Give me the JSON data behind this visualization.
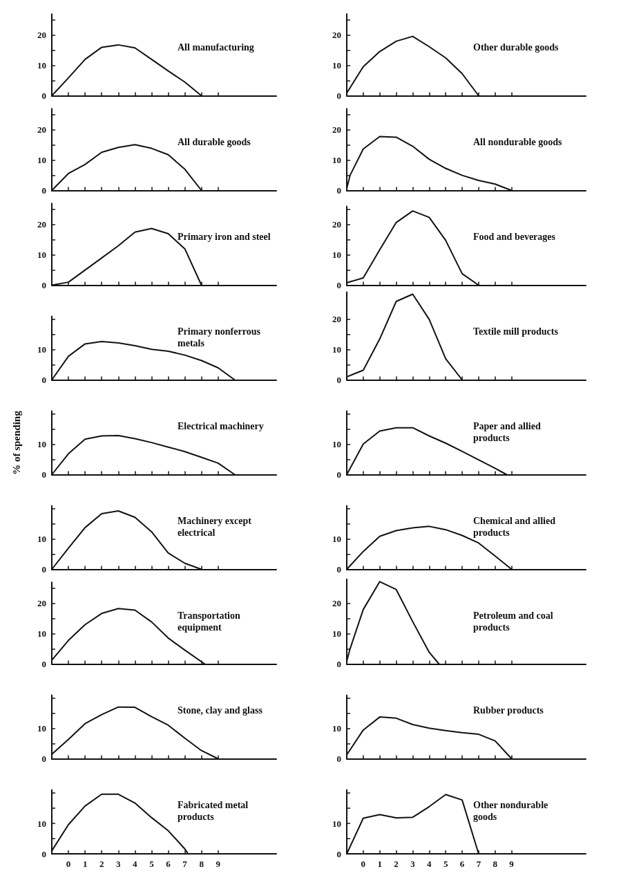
{
  "chart_data": [
    {
      "type": "line",
      "title": "All manufacturing",
      "x": [
        -1,
        0,
        1,
        2,
        3,
        4,
        5,
        6,
        7,
        8
      ],
      "values": [
        0,
        5.9,
        12,
        16,
        16.8,
        15.8,
        12,
        8.2,
        4.5,
        0
      ],
      "color": "#111111",
      "xlim": [
        -1,
        12.5
      ],
      "xticks": [
        0,
        1,
        2,
        3,
        4,
        5,
        6,
        7,
        8,
        9
      ],
      "ylim": [
        0,
        27
      ],
      "yticks": [
        0,
        {
          "value": 5,
          "label": null
        },
        10,
        {
          "value": 15,
          "label": null
        },
        20,
        {
          "value": 25,
          "label": null
        }
      ],
      "tick_labels": "y"
    },
    {
      "type": "line",
      "title": "Other durable goods",
      "x": [
        -1,
        0,
        1,
        2,
        3,
        4,
        5,
        6,
        7
      ],
      "values": [
        0.9,
        9.6,
        14.6,
        18,
        19.6,
        16.2,
        12.5,
        7.3,
        0
      ],
      "color": "#111111",
      "xlim": [
        -1,
        13.5
      ],
      "xticks": [
        0,
        1,
        2,
        3,
        4,
        5,
        6,
        7,
        8,
        9
      ],
      "ylim": [
        0,
        27
      ],
      "yticks": [
        0,
        {
          "value": 5,
          "label": null
        },
        10,
        {
          "value": 15,
          "label": null
        },
        20,
        {
          "value": 25,
          "label": null
        }
      ],
      "tick_labels": "y"
    },
    {
      "type": "line",
      "title": "All durable goods",
      "x": [
        -1,
        0,
        1,
        2,
        3,
        4,
        5,
        6,
        7,
        8
      ],
      "values": [
        0,
        5.6,
        8.6,
        12.6,
        14.2,
        15.1,
        13.9,
        11.8,
        7,
        0
      ],
      "color": "#111111",
      "xlim": [
        -1,
        12.5
      ],
      "xticks": [
        0,
        1,
        2,
        3,
        4,
        5,
        6,
        7,
        8,
        9
      ],
      "ylim": [
        0,
        27
      ],
      "yticks": [
        0,
        {
          "value": 5,
          "label": null
        },
        10,
        {
          "value": 15,
          "label": null
        },
        20,
        {
          "value": 25,
          "label": null
        }
      ],
      "tick_labels": "y"
    },
    {
      "type": "line",
      "title": "All nondurable goods",
      "x": [
        -1,
        -0.8,
        0,
        1,
        2,
        3,
        4,
        5,
        6,
        7,
        8,
        9
      ],
      "values": [
        0.7,
        5,
        13.7,
        17.8,
        17.6,
        14.6,
        10.3,
        7.3,
        5,
        3.3,
        2.1,
        0
      ],
      "color": "#111111",
      "xlim": [
        -1,
        13.5
      ],
      "xticks": [
        0,
        1,
        2,
        3,
        4,
        5,
        6,
        7,
        8,
        9
      ],
      "ylim": [
        0,
        27
      ],
      "yticks": [
        0,
        {
          "value": 5,
          "label": null
        },
        10,
        {
          "value": 15,
          "label": null
        },
        20,
        {
          "value": 25,
          "label": null
        }
      ],
      "tick_labels": "y"
    },
    {
      "type": "line",
      "title": "Primary iron and steel",
      "x": [
        -1,
        0,
        1,
        2,
        3,
        4,
        5,
        6,
        7,
        8
      ],
      "values": [
        0,
        1,
        5,
        9,
        13,
        17.5,
        18.7,
        17,
        12,
        0
      ],
      "color": "#111111",
      "xlim": [
        -1,
        12.5
      ],
      "xticks": [
        0,
        1,
        2,
        3,
        4,
        5,
        6,
        7,
        8,
        9
      ],
      "ylim": [
        0,
        27
      ],
      "yticks": [
        0,
        {
          "value": 5,
          "label": null
        },
        10,
        {
          "value": 15,
          "label": null
        },
        20,
        {
          "value": 25,
          "label": null
        }
      ],
      "tick_labels": "y"
    },
    {
      "type": "line",
      "title": "Food and beverages",
      "x": [
        -1,
        0,
        1,
        2,
        3,
        4,
        5,
        6,
        7
      ],
      "values": [
        0.8,
        2.4,
        11.7,
        20.7,
        24.5,
        22.4,
        14.8,
        3.8,
        0
      ],
      "color": "#111111",
      "xlim": [
        -1,
        13.5
      ],
      "xticks": [
        0,
        1,
        2,
        3,
        4,
        5,
        6,
        7,
        8,
        9
      ],
      "ylim": [
        0,
        26
      ],
      "yticks": [
        0,
        {
          "value": 5,
          "label": null
        },
        10,
        {
          "value": 15,
          "label": null
        },
        20,
        {
          "value": 25,
          "label": null
        }
      ],
      "tick_labels": "y"
    },
    {
      "type": "line",
      "title": "Primary nonferrous metals",
      "x": [
        -1,
        0,
        1,
        2,
        3,
        4,
        5,
        6,
        7,
        8,
        9,
        10
      ],
      "values": [
        0,
        7.8,
        11.9,
        12.7,
        12.2,
        11.3,
        10.1,
        9.5,
        8.2,
        6.4,
        4,
        0
      ],
      "color": "#111111",
      "xlim": [
        -1,
        12.5
      ],
      "xticks": [
        0,
        1,
        2,
        3,
        4,
        5,
        6,
        7,
        8,
        9
      ],
      "ylim": [
        0,
        21
      ],
      "yticks": [
        0,
        {
          "value": 5,
          "label": null
        },
        10,
        {
          "value": 15,
          "label": null
        },
        {
          "value": 20,
          "label": null
        }
      ],
      "tick_labels": "y"
    },
    {
      "type": "line",
      "title": "Textile mill products",
      "x": [
        -1,
        0,
        1,
        2,
        3,
        4,
        5,
        6
      ],
      "values": [
        1,
        3.2,
        13.5,
        25.9,
        28.3,
        20,
        7,
        0
      ],
      "color": "#111111",
      "xlim": [
        -1,
        13.5
      ],
      "xticks": [
        0,
        1,
        2,
        3,
        4,
        5,
        6,
        7,
        8,
        9
      ],
      "ylim": [
        0,
        29
      ],
      "yticks": [
        0,
        {
          "value": 5,
          "label": null
        },
        10,
        {
          "value": 15,
          "label": null
        },
        20
      ],
      "tick_labels": "y"
    },
    {
      "type": "line",
      "title": "Electrical machinery",
      "ylabel": "% of spending",
      "x": [
        -1,
        0,
        1,
        2,
        3,
        4,
        5,
        6,
        7,
        8,
        9,
        10
      ],
      "values": [
        0,
        6.9,
        11.7,
        12.8,
        12.9,
        11.9,
        10.6,
        9.1,
        7.6,
        5.7,
        3.8,
        0
      ],
      "color": "#111111",
      "xlim": [
        -1,
        12.5
      ],
      "xticks": [
        0,
        1,
        2,
        3,
        4,
        5,
        6,
        7,
        8,
        9
      ],
      "ylim": [
        0,
        21
      ],
      "yticks": [
        0,
        {
          "value": 5,
          "label": null
        },
        10,
        {
          "value": 15,
          "label": null
        },
        {
          "value": 20,
          "label": null
        }
      ],
      "tick_labels": "y"
    },
    {
      "type": "line",
      "title": "Paper and allied products",
      "x": [
        -1,
        0,
        1,
        2,
        3,
        4,
        5,
        6,
        7,
        8,
        8.7
      ],
      "values": [
        0,
        10.1,
        14.4,
        15.5,
        15.5,
        12.8,
        10.4,
        7.7,
        4.9,
        2.1,
        0
      ],
      "color": "#111111",
      "xlim": [
        -1,
        13.5
      ],
      "xticks": [
        0,
        1,
        2,
        3,
        4,
        5,
        6,
        7,
        8,
        9
      ],
      "ylim": [
        0,
        21
      ],
      "yticks": [
        0,
        {
          "value": 5,
          "label": null
        },
        10,
        {
          "value": 15,
          "label": null
        },
        {
          "value": 20,
          "label": null
        }
      ],
      "tick_labels": "y"
    },
    {
      "type": "line",
      "title": "Machinery except electrical",
      "x": [
        -1,
        0,
        1,
        2,
        3,
        4,
        5,
        6,
        7,
        8
      ],
      "values": [
        0,
        7,
        13.8,
        18.4,
        19.3,
        17.2,
        12.4,
        5.4,
        2,
        0
      ],
      "color": "#111111",
      "xlim": [
        -1,
        12.5
      ],
      "xticks": [
        0,
        1,
        2,
        3,
        4,
        5,
        6,
        7,
        8,
        9
      ],
      "ylim": [
        0,
        21
      ],
      "yticks": [
        0,
        {
          "value": 5,
          "label": null
        },
        10,
        {
          "value": 15,
          "label": null
        },
        {
          "value": 20,
          "label": null
        }
      ],
      "tick_labels": "y"
    },
    {
      "type": "line",
      "title": "Chemical and allied products",
      "x": [
        -1,
        0,
        1,
        2,
        3,
        4,
        5,
        6,
        7,
        8,
        9
      ],
      "values": [
        0,
        5.9,
        10.9,
        12.8,
        13.7,
        14.2,
        13.1,
        11.2,
        8.7,
        4.4,
        0
      ],
      "color": "#111111",
      "xlim": [
        -1,
        13.5
      ],
      "xticks": [
        0,
        1,
        2,
        3,
        4,
        5,
        6,
        7,
        8,
        9
      ],
      "ylim": [
        0,
        21
      ],
      "yticks": [
        0,
        {
          "value": 5,
          "label": null
        },
        10,
        {
          "value": 15,
          "label": null
        },
        {
          "value": 20,
          "label": null
        }
      ],
      "tick_labels": "y"
    },
    {
      "type": "line",
      "title": "Transportation equipment",
      "x": [
        -1,
        0,
        1,
        2,
        3,
        4,
        5,
        6,
        7,
        8.2
      ],
      "values": [
        1.3,
        7.8,
        13,
        16.7,
        18.3,
        17.8,
        13.9,
        8.6,
        4.6,
        0
      ],
      "color": "#111111",
      "xlim": [
        -1,
        12.5
      ],
      "xticks": [
        0,
        1,
        2,
        3,
        4,
        5,
        6,
        7,
        8,
        9
      ],
      "ylim": [
        0,
        27
      ],
      "yticks": [
        0,
        {
          "value": 5,
          "label": null
        },
        10,
        {
          "value": 15,
          "label": null
        },
        20,
        {
          "value": 25,
          "label": null
        }
      ],
      "tick_labels": "y"
    },
    {
      "type": "line",
      "title": "Petroleum and coal products",
      "x": [
        -1,
        -0.8,
        0,
        1,
        2,
        3,
        4,
        4.6
      ],
      "values": [
        1,
        5,
        18,
        27.2,
        24.6,
        14,
        3.9,
        0
      ],
      "color": "#111111",
      "xlim": [
        -1,
        13.5
      ],
      "xticks": [
        0,
        1,
        2,
        3,
        4,
        5,
        6,
        7,
        8,
        9
      ],
      "ylim": [
        0,
        28
      ],
      "yticks": [
        0,
        {
          "value": 5,
          "label": null
        },
        10,
        {
          "value": 15,
          "label": null
        },
        20
      ],
      "tick_labels": "y"
    },
    {
      "type": "line",
      "title": "Stone, clay and glass",
      "x": [
        -1,
        0,
        1,
        2,
        3,
        4,
        5,
        6,
        7,
        8,
        9
      ],
      "values": [
        1.5,
        6.4,
        11.6,
        14.6,
        17.1,
        17,
        13.9,
        11.1,
        6.8,
        2.7,
        0
      ],
      "color": "#111111",
      "xlim": [
        -1,
        12.5
      ],
      "xticks": [
        0,
        1,
        2,
        3,
        4,
        5,
        6,
        7,
        8,
        9
      ],
      "ylim": [
        0,
        21
      ],
      "yticks": [
        0,
        {
          "value": 5,
          "label": null
        },
        10,
        {
          "value": 15,
          "label": null
        },
        {
          "value": 20,
          "label": null
        }
      ],
      "tick_labels": "y"
    },
    {
      "type": "line",
      "title": "Rubber products",
      "x": [
        -1,
        0,
        1,
        2,
        3,
        4,
        5,
        6,
        7,
        8,
        9
      ],
      "values": [
        1.3,
        9.5,
        13.8,
        13.4,
        11.3,
        10.1,
        9.3,
        8.6,
        8.1,
        5.9,
        0
      ],
      "color": "#111111",
      "xlim": [
        -1,
        13.5
      ],
      "xticks": [
        0,
        1,
        2,
        3,
        4,
        5,
        6,
        7,
        8,
        9
      ],
      "ylim": [
        0,
        21
      ],
      "yticks": [
        0,
        {
          "value": 5,
          "label": null
        },
        10,
        {
          "value": 15,
          "label": null
        },
        {
          "value": 20,
          "label": null
        }
      ],
      "tick_labels": "y"
    },
    {
      "type": "line",
      "title": "Fabricated metal products",
      "x": [
        -1,
        0,
        1,
        2,
        3,
        4,
        5,
        6,
        7,
        7.2
      ],
      "values": [
        1,
        9.6,
        15.7,
        19.6,
        19.6,
        16.7,
        11.9,
        7.6,
        1.6,
        0
      ],
      "color": "#111111",
      "xlim": [
        -1,
        12.5
      ],
      "xticks": [
        0,
        1,
        2,
        3,
        4,
        5,
        6,
        7,
        8,
        9
      ],
      "ylim": [
        0,
        21
      ],
      "yticks": [
        0,
        {
          "value": 5,
          "label": null
        },
        10,
        {
          "value": 15,
          "label": null
        },
        {
          "value": 20,
          "label": null
        }
      ]
    },
    {
      "type": "line",
      "title": "Other nondurable goods",
      "x": [
        -1,
        0,
        1,
        2,
        3,
        4,
        5,
        6,
        7
      ],
      "values": [
        0,
        11.7,
        12.9,
        11.8,
        12,
        15.5,
        19.5,
        17.7,
        0
      ],
      "color": "#111111",
      "xlim": [
        -1,
        13.5
      ],
      "xticks": [
        0,
        1,
        2,
        3,
        4,
        5,
        6,
        7,
        8,
        9
      ],
      "ylim": [
        0,
        21
      ],
      "yticks": [
        0,
        {
          "value": 5,
          "label": null
        },
        10,
        {
          "value": 15,
          "label": null
        },
        {
          "value": 20,
          "label": null
        }
      ]
    }
  ]
}
